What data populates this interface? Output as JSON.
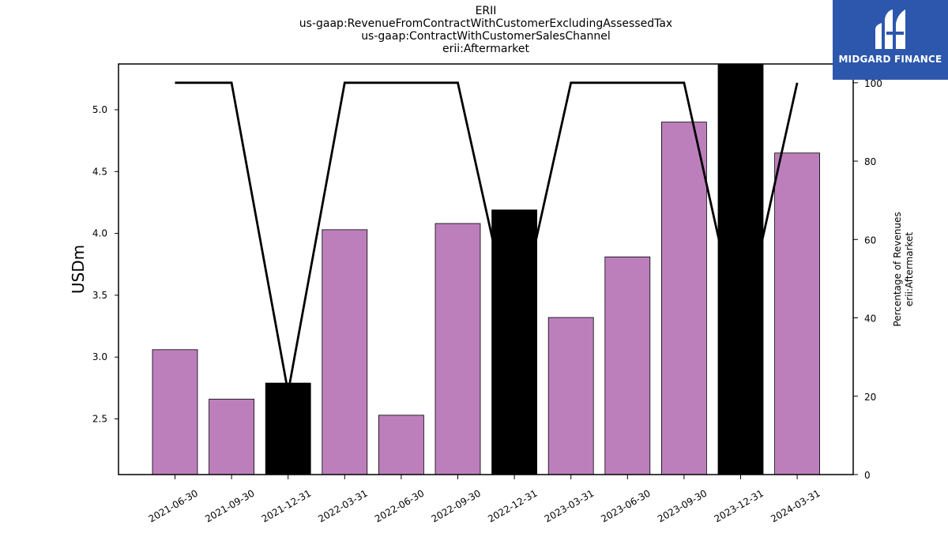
{
  "title_lines": [
    "ERII",
    "us-gaap:RevenueFromContractWithCustomerExcludingAssessedTax",
    "us-gaap:ContractWithCustomerSalesChannel",
    "erii:Aftermarket"
  ],
  "logo": {
    "text": "MIDGARD FINANCE",
    "color": "#2c57ad"
  },
  "chart_data": {
    "type": "bar",
    "categories": [
      "2021-06-30",
      "2021-09-30",
      "2021-12-31",
      "2022-03-31",
      "2022-06-30",
      "2022-09-30",
      "2022-12-31",
      "2023-03-31",
      "2023-06-30",
      "2023-09-30",
      "2023-12-31",
      "2024-03-31"
    ],
    "series": [
      {
        "axis": "left",
        "type": "bar",
        "values": [
          3.06,
          2.66,
          2.79,
          4.03,
          2.53,
          4.08,
          4.19,
          3.32,
          3.81,
          4.9,
          5.38,
          4.65
        ],
        "colors": [
          "#bc7fbc",
          "#bc7fbc",
          "#000000",
          "#bc7fbc",
          "#bc7fbc",
          "#bc7fbc",
          "#000000",
          "#bc7fbc",
          "#bc7fbc",
          "#bc7fbc",
          "#000000",
          "#bc7fbc"
        ]
      },
      {
        "axis": "right",
        "type": "line",
        "color": "#000000",
        "values": [
          100,
          100,
          21,
          100,
          100,
          100,
          35,
          100,
          100,
          100,
          35,
          100
        ]
      }
    ],
    "ylabel": "USDm",
    "y2label_lines": [
      "Percentage of Revenues",
      "erii:Aftermarket"
    ],
    "ylim": [
      2.05,
      5.37
    ],
    "y2lim": [
      0,
      104.8
    ],
    "yticks": [
      "2.5",
      "3.0",
      "3.5",
      "4.0",
      "4.5",
      "5.0"
    ],
    "y2ticks": [
      "0",
      "20",
      "40",
      "60",
      "80",
      "100"
    ],
    "grid": false,
    "legend": "none"
  }
}
